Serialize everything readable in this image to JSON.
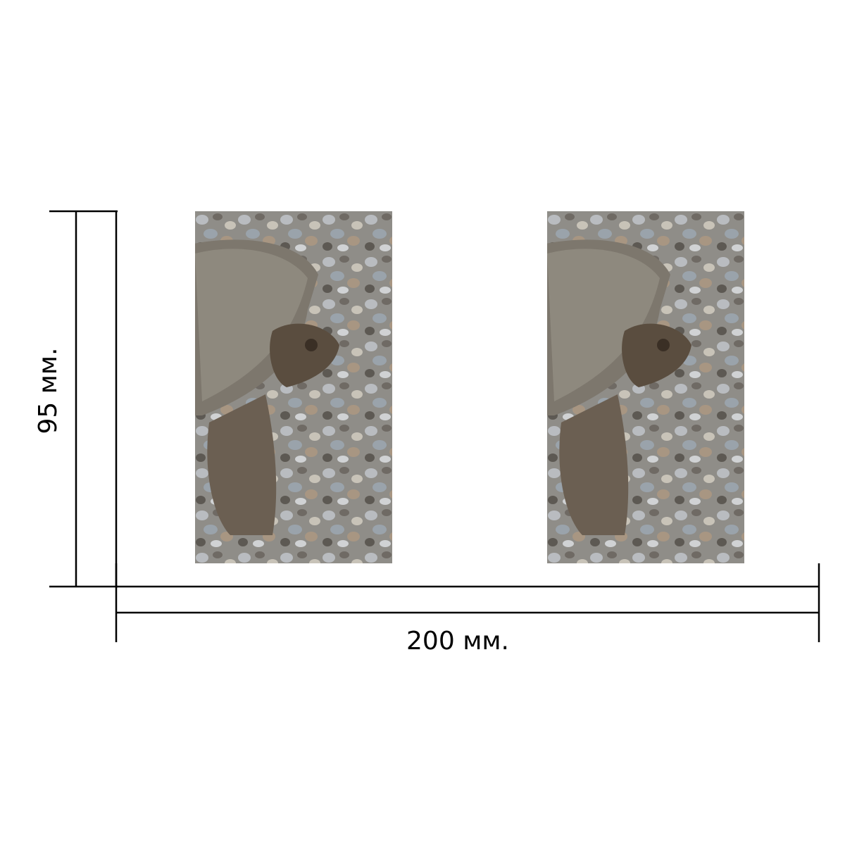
{
  "dimensions": {
    "height_label": "95 мм.",
    "width_label": "200 мм."
  }
}
